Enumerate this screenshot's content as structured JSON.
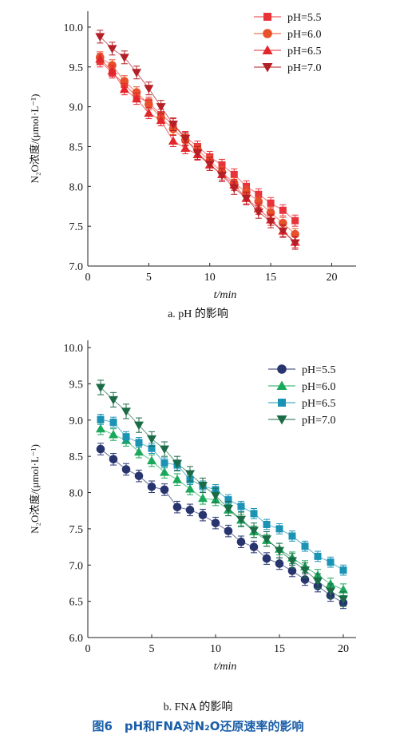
{
  "figure_caption": "图6　pH和FNA对N₂O还原速率的影响",
  "chart_data": [
    {
      "id": "a",
      "type": "scatter",
      "sublabel": "a. pH 的影响",
      "ylabel": "N₂O浓度/(μmol·L⁻¹)",
      "xlabel": "t/min",
      "xlim": [
        0,
        22
      ],
      "ylim": [
        7.0,
        10.2
      ],
      "xticks": [
        0,
        5,
        10,
        15,
        20
      ],
      "yticks": [
        7.0,
        7.5,
        8.0,
        8.5,
        9.0,
        9.5,
        10.0
      ],
      "legend_position": "top-right",
      "series": [
        {
          "name": "pH=5.5",
          "marker": "square",
          "color": "#e8333a",
          "x": [
            1,
            2,
            3,
            4,
            5,
            6,
            7,
            8,
            9,
            10,
            11,
            12,
            13,
            14,
            15,
            16,
            17
          ],
          "y": [
            9.57,
            9.43,
            9.28,
            9.13,
            9.05,
            8.9,
            8.78,
            8.62,
            8.5,
            8.37,
            8.27,
            8.15,
            8.0,
            7.9,
            7.79,
            7.7,
            7.57
          ],
          "err": 0.07
        },
        {
          "name": "pH=6.0",
          "marker": "circle",
          "color": "#e8502a",
          "x": [
            1,
            2,
            3,
            4,
            5,
            6,
            7,
            8,
            9,
            10,
            11,
            12,
            13,
            14,
            15,
            16,
            17
          ],
          "y": [
            9.62,
            9.52,
            9.32,
            9.18,
            9.03,
            8.86,
            8.72,
            8.58,
            8.46,
            8.32,
            8.18,
            8.04,
            7.93,
            7.81,
            7.67,
            7.54,
            7.4
          ],
          "err": 0.07
        },
        {
          "name": "pH=6.5",
          "marker": "triangle-up",
          "color": "#e2262c",
          "x": [
            1,
            2,
            3,
            4,
            5,
            6,
            7,
            8,
            9,
            10,
            11,
            12,
            13,
            14,
            15,
            16,
            17
          ],
          "y": [
            9.6,
            9.45,
            9.22,
            9.1,
            8.92,
            8.83,
            8.57,
            8.48,
            8.4,
            8.27,
            8.15,
            8.02,
            7.85,
            7.72,
            7.58,
            7.44,
            7.3
          ],
          "err": 0.07
        },
        {
          "name": "pH=7.0",
          "marker": "triangle-down",
          "color": "#b52027",
          "x": [
            1,
            2,
            3,
            4,
            5,
            6,
            7,
            8,
            9,
            10,
            11,
            12,
            13,
            14,
            15,
            16,
            17
          ],
          "y": [
            9.88,
            9.73,
            9.62,
            9.43,
            9.23,
            9.0,
            8.78,
            8.6,
            8.42,
            8.28,
            8.14,
            7.98,
            7.85,
            7.68,
            7.56,
            7.44,
            7.29
          ],
          "err": 0.08
        }
      ]
    },
    {
      "id": "b",
      "type": "scatter",
      "sublabel": "b. FNA 的影响",
      "ylabel": "N₂O浓度/(μmol·L⁻¹)",
      "xlabel": "t/min",
      "xlim": [
        0,
        21
      ],
      "ylim": [
        6.0,
        10.1
      ],
      "xticks": [
        0,
        5,
        10,
        15,
        20
      ],
      "yticks": [
        6.0,
        6.5,
        7.0,
        7.5,
        8.0,
        8.5,
        9.0,
        9.5,
        10.0
      ],
      "legend_position": "top-right",
      "series": [
        {
          "name": "pH=5.5",
          "marker": "circle",
          "color": "#27346e",
          "x": [
            1,
            2,
            3,
            4,
            5,
            6,
            7,
            8,
            9,
            10,
            11,
            12,
            13,
            14,
            15,
            16,
            17,
            18,
            19,
            20
          ],
          "y": [
            8.6,
            8.46,
            8.32,
            8.23,
            8.08,
            8.04,
            7.8,
            7.76,
            7.69,
            7.58,
            7.47,
            7.32,
            7.25,
            7.09,
            7.02,
            6.92,
            6.8,
            6.71,
            6.58,
            6.48
          ],
          "err": 0.08
        },
        {
          "name": "pH=6.0",
          "marker": "triangle-up",
          "color": "#1aa85a",
          "x": [
            1,
            2,
            3,
            4,
            5,
            6,
            7,
            8,
            9,
            10,
            11,
            12,
            13,
            14,
            15,
            16,
            17,
            18,
            19,
            20
          ],
          "y": [
            8.88,
            8.8,
            8.72,
            8.56,
            8.44,
            8.28,
            8.18,
            8.05,
            7.92,
            7.9,
            7.76,
            7.62,
            7.46,
            7.34,
            7.22,
            7.1,
            6.98,
            6.86,
            6.74,
            6.66
          ],
          "err": 0.08
        },
        {
          "name": "pH=6.5",
          "marker": "square",
          "color": "#1a93b5",
          "x": [
            1,
            2,
            3,
            4,
            5,
            6,
            7,
            8,
            9,
            10,
            11,
            12,
            13,
            14,
            15,
            16,
            17,
            18,
            19,
            20
          ],
          "y": [
            9.01,
            8.97,
            8.77,
            8.69,
            8.61,
            8.41,
            8.38,
            8.18,
            8.09,
            8.04,
            7.9,
            7.81,
            7.71,
            7.56,
            7.5,
            7.4,
            7.26,
            7.12,
            7.04,
            6.93
          ],
          "err": 0.07
        },
        {
          "name": "pH=7.0",
          "marker": "triangle-down",
          "color": "#1b6b46",
          "x": [
            1,
            2,
            3,
            4,
            5,
            6,
            7,
            8,
            9,
            10,
            11,
            12,
            13,
            14,
            15,
            16,
            17,
            18,
            19,
            20
          ],
          "y": [
            9.45,
            9.28,
            9.12,
            8.93,
            8.74,
            8.6,
            8.4,
            8.26,
            8.1,
            7.96,
            7.78,
            7.63,
            7.48,
            7.36,
            7.2,
            7.06,
            6.93,
            6.78,
            6.64,
            6.53
          ],
          "err": 0.1
        }
      ]
    }
  ]
}
